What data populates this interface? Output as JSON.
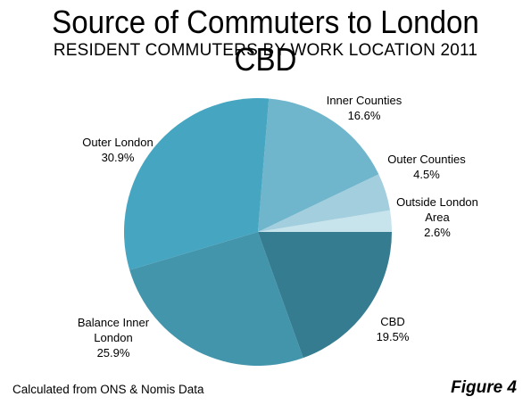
{
  "chart_data": {
    "type": "pie",
    "title": "Source of Commuters to London CBD",
    "subtitle": "RESIDENT COMMUTERS BY WORK LOCATION 2011",
    "slices": [
      {
        "name": "Outside London Area",
        "label_lines": "Outside London\nArea",
        "value": 2.6,
        "value_label": "2.6%",
        "color": "#c7e3ec"
      },
      {
        "name": "Outer Counties",
        "label_lines": "Outer Counties",
        "value": 4.5,
        "value_label": "4.5%",
        "color": "#a3cedd"
      },
      {
        "name": "Inner Counties",
        "label_lines": "Inner Counties",
        "value": 16.6,
        "value_label": "16.6%",
        "color": "#6fb5cc"
      },
      {
        "name": "Outer London",
        "label_lines": "Outer London",
        "value": 30.9,
        "value_label": "30.9%",
        "color": "#46a5c0"
      },
      {
        "name": "Balance Inner London",
        "label_lines": "Balance Inner\nLondon",
        "value": 25.9,
        "value_label": "25.9%",
        "color": "#4395ac"
      },
      {
        "name": "CBD",
        "label_lines": "CBD",
        "value": 19.5,
        "value_label": "19.5%",
        "color": "#357c90"
      }
    ],
    "start": "3 o'clock, counterclockwise",
    "legend": "none"
  },
  "footer": {
    "source": "Calculated from ONS & Nomis Data",
    "figure": "Figure 4"
  }
}
